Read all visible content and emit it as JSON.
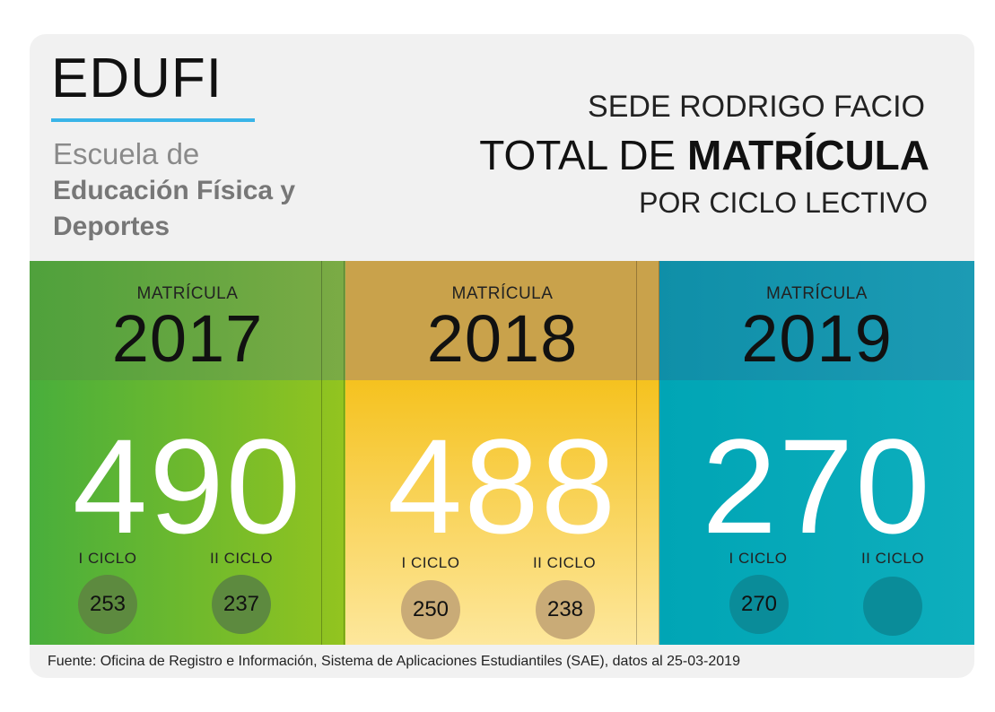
{
  "header": {
    "logo": "EDUFI",
    "school_line1": "Escuela de",
    "school_line2": "Educación Física y Deportes",
    "sede": "SEDE RODRIGO FACIO",
    "total_prefix": "TOTAL DE ",
    "total_bold": "MATRÍCULA",
    "subtitle": "POR CICLO LECTIVO"
  },
  "columns": [
    {
      "label": "MATRÍCULA",
      "year": "2017",
      "total": "490",
      "cycle1_label": "I CICLO",
      "cycle1_value": "253",
      "cycle2_label": "II CICLO",
      "cycle2_value": "237",
      "top_color": "#6fa83a",
      "bottom_color": "#8cc63f"
    },
    {
      "label": "MATRÍCULA",
      "year": "2018",
      "total": "488",
      "cycle1_label": "I CICLO",
      "cycle1_value": "250",
      "cycle2_label": "II CICLO",
      "cycle2_value": "238",
      "top_color": "#c9a445",
      "bottom_color": "#f7c62a"
    },
    {
      "label": "MATRÍCULA",
      "year": "2019",
      "total": "270",
      "cycle1_label": "I CICLO",
      "cycle1_value": "270",
      "cycle2_label": "II CICLO",
      "cycle2_value": "",
      "top_color": "#1a9cb0",
      "bottom_color": "#0fb0bf"
    }
  ],
  "footer": "Fuente: Oficina de Registro e Información, Sistema de Aplicaciones Estudiantiles (SAE), datos al 25-03-2019"
}
